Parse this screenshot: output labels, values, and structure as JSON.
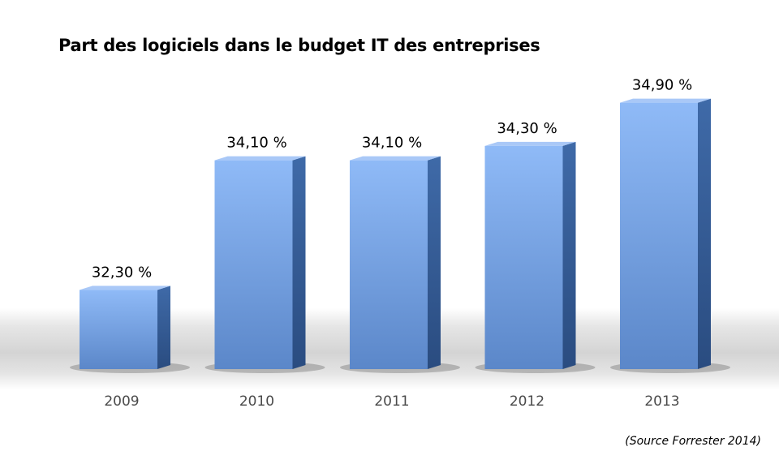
{
  "chart_data": {
    "type": "bar",
    "title": "Part des logiciels dans le budget IT des entreprises",
    "categories": [
      "2009",
      "2010",
      "2011",
      "2012",
      "2013"
    ],
    "values": [
      32.3,
      34.1,
      34.1,
      34.3,
      34.9
    ],
    "data_labels": [
      "32,30 %",
      "34,10 %",
      "34,10 %",
      "34,30 %",
      "34,90 %"
    ],
    "xlabel": "",
    "ylabel": "",
    "ylim": [
      31.2,
      35.2
    ],
    "grid": false,
    "legend": "none",
    "bar_color": "#79a7ee",
    "source": "(Source Forrester 2014)"
  }
}
